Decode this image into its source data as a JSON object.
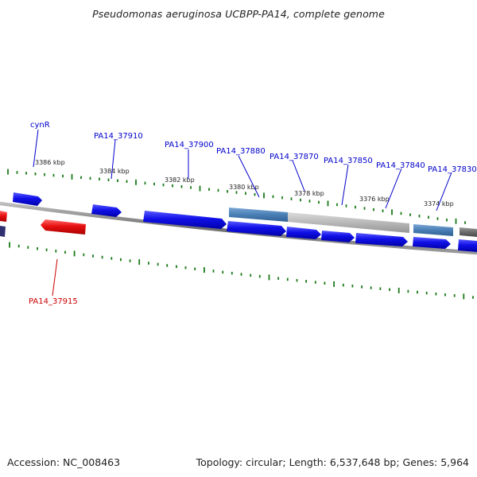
{
  "title": "Pseudomonas aeruginosa UCBPP-PA14, complete genome",
  "footer": {
    "accession": "Accession: NC_008463",
    "topology": "Topology: circular; Length: 6,537,648 bp; Genes: 5,964"
  },
  "colors": {
    "forward_gene": "#1010e8",
    "reverse_gene": "#e81010",
    "operon_highlight": "#4a7fb5",
    "region_gray": "#b8b8b8",
    "backbone": "#777777",
    "tick": "#1a7a1a",
    "label_forward": "#0000cc",
    "label_reverse": "#cc0000"
  },
  "scale_labels": [
    "3386 kbp",
    "3384 kbp",
    "3382 kbp",
    "3380 kbp",
    "3378 kbp",
    "3376 kbp",
    "3374 kbp"
  ],
  "gene_labels_forward": [
    "cynR",
    "PA14_37910",
    "PA14_37900",
    "PA14_37880",
    "PA14_37870",
    "PA14_37850",
    "PA14_37840",
    "PA14_37830"
  ],
  "gene_labels_reverse": [
    "PA14_37915"
  ]
}
